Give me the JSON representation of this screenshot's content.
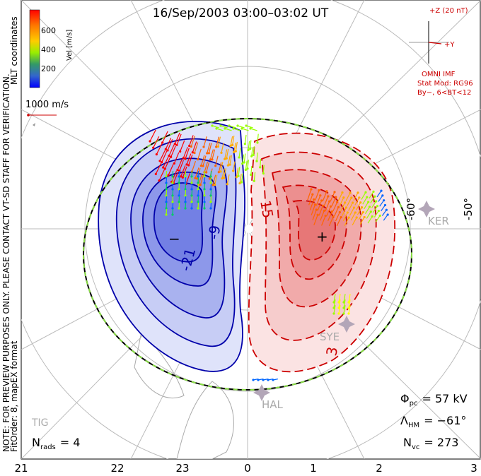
{
  "title": "16/Sep/2003 03:00–03:02 UT",
  "colorbar": {
    "ticks": [
      "600",
      "400",
      "200"
    ],
    "label": "Vel [m/s]",
    "colors": [
      "#ff0000",
      "#ff6600",
      "#ffaa00",
      "#ffff00",
      "#99ff00",
      "#00cc66",
      "#0066ff",
      "#0000ff"
    ]
  },
  "coords_label": "MLT coordinates",
  "reference_vector": "1000 m/s",
  "side_note": "NOTE: FOR PREVIEW PURPOSES ONLY. PLEASE CONTACT VT-SD STAFF FOR VERIFICATION.",
  "fit_order": "FitOrder: 8, mapEX format",
  "imf": {
    "z_label": "+Z (20 nT)",
    "y_label": "+Y",
    "source": "OMNI IMF",
    "model": "Stat Mod: RG96",
    "condition": "By−, 6<BT<12"
  },
  "latitude_labels": [
    "-60°",
    "-50°"
  ],
  "stations": [
    "KER",
    "SYE",
    "HAL",
    "TIG"
  ],
  "contour_labels": [
    "-9",
    "-21",
    "15",
    "3"
  ],
  "cell_markers": {
    "min": "−",
    "max": "+"
  },
  "mlt_labels": [
    "21",
    "22",
    "23",
    "0",
    "1",
    "2",
    "3"
  ],
  "stats": {
    "phi_pc_label": "Φ",
    "phi_pc_sub": "pc",
    "phi_pc_value": "= 57 kV",
    "lambda_label": "Λ",
    "lambda_sub": "HM",
    "lambda_value": "= −61°",
    "nvc_label": "N",
    "nvc_sub": "vc",
    "nvc_value": "= 273",
    "nrads_label": "N",
    "nrads_sub": "rads",
    "nrads_value": "= 4"
  },
  "potential_colors": {
    "negative": "#5a6ee0",
    "positive": "#e85a5a",
    "neg_line": "#0000aa",
    "pos_line": "#cc0000"
  }
}
